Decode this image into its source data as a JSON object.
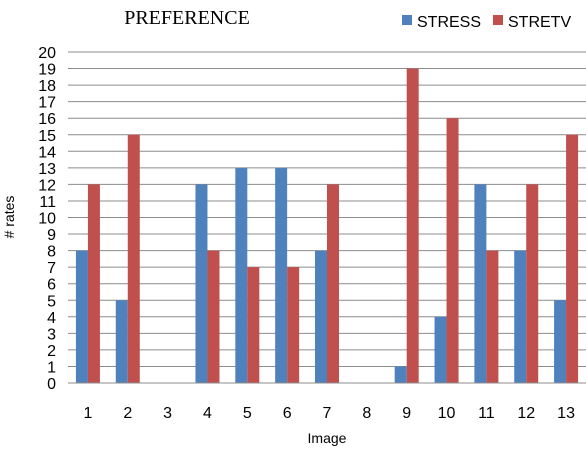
{
  "chart_data": {
    "type": "bar",
    "title": "PREFERENCE",
    "xlabel": "Image",
    "ylabel": "# rates",
    "categories": [
      "1",
      "2",
      "3",
      "4",
      "5",
      "6",
      "7",
      "8",
      "9",
      "10",
      "11",
      "12",
      "13"
    ],
    "series": [
      {
        "name": "STRESS",
        "color": "#4f81bd",
        "values": [
          8,
          5,
          0,
          12,
          13,
          13,
          8,
          0,
          1,
          4,
          12,
          8,
          5
        ]
      },
      {
        "name": "STRETV",
        "color": "#c0504d",
        "values": [
          12,
          15,
          0,
          8,
          7,
          7,
          12,
          0,
          19,
          16,
          8,
          12,
          15
        ]
      }
    ],
    "ylim": [
      0,
      20
    ],
    "yticks": [
      0,
      1,
      2,
      3,
      4,
      5,
      6,
      7,
      8,
      9,
      10,
      11,
      12,
      13,
      14,
      15,
      16,
      17,
      18,
      19,
      20
    ],
    "grid": true,
    "legend_position": "top-right"
  }
}
